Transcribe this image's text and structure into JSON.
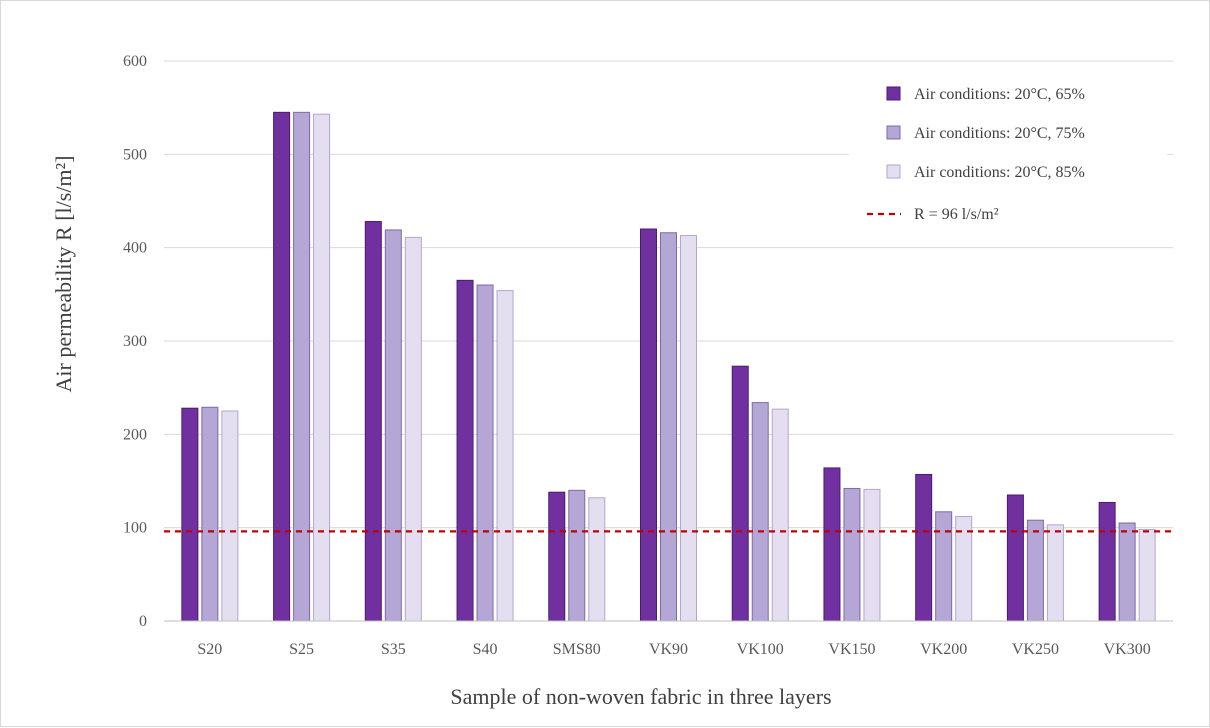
{
  "chart_data": {
    "type": "bar",
    "title": "",
    "xlabel": "Sample of non-woven fabric in three layers",
    "ylabel": "Air permeability R [l/s/m²]",
    "ylim": [
      0,
      600
    ],
    "yticks": [
      0,
      100,
      200,
      300,
      400,
      500,
      600
    ],
    "grid": true,
    "legend_position": "top-right",
    "categories": [
      "S20",
      "S25",
      "S35",
      "S40",
      "SMS80",
      "VK90",
      "VK100",
      "VK150",
      "VK200",
      "VK250",
      "VK300"
    ],
    "series": [
      {
        "name": "Air conditions: 20°C, 65%",
        "color": "#7030a0",
        "edge": "#4b1a73",
        "values": [
          228,
          545,
          428,
          365,
          138,
          420,
          273,
          164,
          157,
          135,
          127
        ]
      },
      {
        "name": "Air conditions: 20°C, 75%",
        "color": "#b4a7d6",
        "edge": "#7e6aa8",
        "values": [
          229,
          545,
          419,
          360,
          140,
          416,
          234,
          142,
          117,
          108,
          105
        ]
      },
      {
        "name": "Air conditions: 20°C, 85%",
        "color": "#e4dff0",
        "edge": "#b3a6cf",
        "values": [
          225,
          543,
          411,
          354,
          132,
          413,
          227,
          141,
          112,
          103,
          98
        ]
      }
    ],
    "reference_line": {
      "label": "R = 96 l/s/m²",
      "value": 96,
      "color": "#c00000"
    }
  }
}
